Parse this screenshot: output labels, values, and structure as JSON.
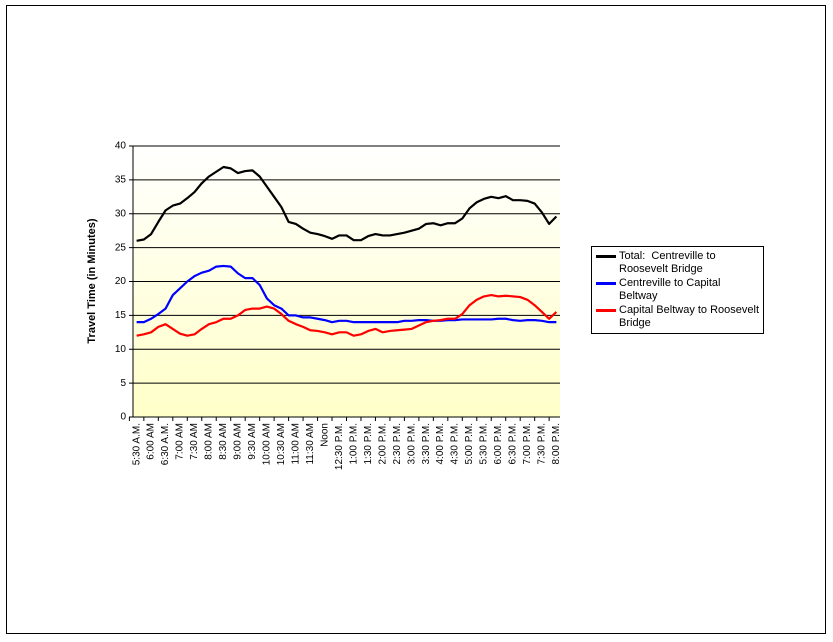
{
  "chart_data": {
    "type": "line",
    "y_label": "Travel Time (in Minutes)",
    "categories": [
      "5:30  A.M.",
      null,
      "6:00 AM",
      null,
      "6:30 A.M.",
      null,
      "7:00 AM",
      null,
      "7:30 AM",
      null,
      "8:00 AM",
      null,
      "8:30 AM",
      null,
      "9:00 AM",
      null,
      "9:30 AM",
      null,
      "10:00 AM",
      null,
      "10:30 AM",
      null,
      "11:00 AM",
      null,
      "11:30 AM",
      null,
      "Noon",
      null,
      "12:30 P.M.",
      null,
      "1:00 P.M.",
      null,
      "1:30 P.M.",
      null,
      "2:00 P.M.",
      null,
      "2:30 P.M.",
      null,
      "3:00 P.M.",
      null,
      "3:30 P.M.",
      null,
      "4:00 P.M.",
      null,
      "4:30 P.M.",
      null,
      "5:00 P.M.",
      null,
      "5:30 P.M.",
      null,
      "6:00 P.M.",
      null,
      "6:30 P.M.",
      null,
      "7:00 P.M.",
      null,
      "7:30 P.M.",
      null,
      "8:00 P.M."
    ],
    "series": [
      {
        "name": "Total:  Centreville to Roosevelt Bridge",
        "color": "#000000",
        "values": [
          26,
          26.2,
          27,
          28.8,
          30.5,
          31.2,
          31.5,
          32.3,
          33.2,
          34.5,
          35.5,
          36.2,
          36.9,
          36.7,
          36,
          36.3,
          36.4,
          35.5,
          34,
          32.5,
          31,
          28.8,
          28.5,
          27.8,
          27.2,
          27,
          26.7,
          26.3,
          26.8,
          26.8,
          26.1,
          26.1,
          26.7,
          27,
          26.8,
          26.8,
          27,
          27.2,
          27.5,
          27.8,
          28.5,
          28.6,
          28.3,
          28.6,
          28.6,
          29.3,
          30.8,
          31.7,
          32.2,
          32.5,
          32.3,
          32.6,
          32,
          32,
          31.9,
          31.5,
          30.2,
          28.5,
          29.6
        ]
      },
      {
        "name": "Centreville to Capital Beltway",
        "color": "#0000ff",
        "values": [
          14,
          14,
          14.5,
          15.2,
          16,
          18,
          19,
          20,
          20.8,
          21.3,
          21.6,
          22.2,
          22.3,
          22.2,
          21.2,
          20.5,
          20.5,
          19.5,
          17.5,
          16.5,
          16,
          15,
          15,
          14.7,
          14.7,
          14.5,
          14.3,
          14,
          14.2,
          14.2,
          14,
          14,
          14,
          14,
          14,
          14,
          14,
          14.2,
          14.2,
          14.3,
          14.3,
          14.2,
          14.2,
          14.3,
          14.3,
          14.4,
          14.4,
          14.4,
          14.4,
          14.4,
          14.5,
          14.5,
          14.3,
          14.2,
          14.3,
          14.3,
          14.2,
          14,
          14
        ]
      },
      {
        "name": "Capital Beltway to Roosevelt Bridge",
        "color": "#ff0000",
        "values": [
          12,
          12.2,
          12.5,
          13.3,
          13.7,
          13,
          12.3,
          12,
          12.2,
          13,
          13.7,
          14,
          14.5,
          14.5,
          15,
          15.8,
          16,
          16,
          16.3,
          16,
          15.2,
          14.2,
          13.7,
          13.3,
          12.8,
          12.7,
          12.5,
          12.2,
          12.5,
          12.5,
          12,
          12.2,
          12.7,
          13,
          12.5,
          12.7,
          12.8,
          12.9,
          13,
          13.5,
          14,
          14.2,
          14.3,
          14.5,
          14.5,
          15.2,
          16.5,
          17.3,
          17.8,
          18,
          17.8,
          17.9,
          17.8,
          17.7,
          17.3,
          16.5,
          15.5,
          14.5,
          15.5
        ]
      }
    ],
    "ylim": [
      0,
      40
    ],
    "yticks": [
      0,
      5,
      10,
      15,
      20,
      25,
      30,
      35,
      40
    ],
    "grid": true
  }
}
